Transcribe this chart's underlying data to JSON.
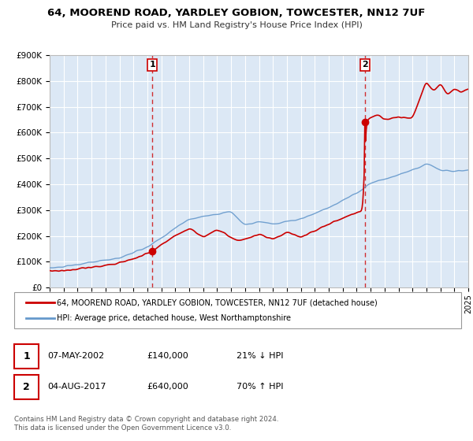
{
  "title": "64, MOOREND ROAD, YARDLEY GOBION, TOWCESTER, NN12 7UF",
  "subtitle": "Price paid vs. HM Land Registry's House Price Index (HPI)",
  "background_color": "#ffffff",
  "plot_bg_color": "#dce8f5",
  "grid_color": "#ffffff",
  "legend_label_red": "64, MOOREND ROAD, YARDLEY GOBION, TOWCESTER, NN12 7UF (detached house)",
  "legend_label_blue": "HPI: Average price, detached house, West Northamptonshire",
  "sale1_date": 2002.35,
  "sale1_price": 140000,
  "sale2_date": 2017.58,
  "sale2_price": 640000,
  "footer1": "Contains HM Land Registry data © Crown copyright and database right 2024.",
  "footer2": "This data is licensed under the Open Government Licence v3.0.",
  "xmin": 1995,
  "xmax": 2025,
  "ymin": 0,
  "ymax": 900000,
  "red_color": "#cc0000",
  "blue_color": "#6699cc",
  "dashed_color": "#cc0000",
  "ann1_box": "1",
  "ann1_date": "07-MAY-2002",
  "ann1_price": "£140,000",
  "ann1_hpi": "21% ↓ HPI",
  "ann2_box": "2",
  "ann2_date": "04-AUG-2017",
  "ann2_price": "£640,000",
  "ann2_hpi": "70% ↑ HPI"
}
